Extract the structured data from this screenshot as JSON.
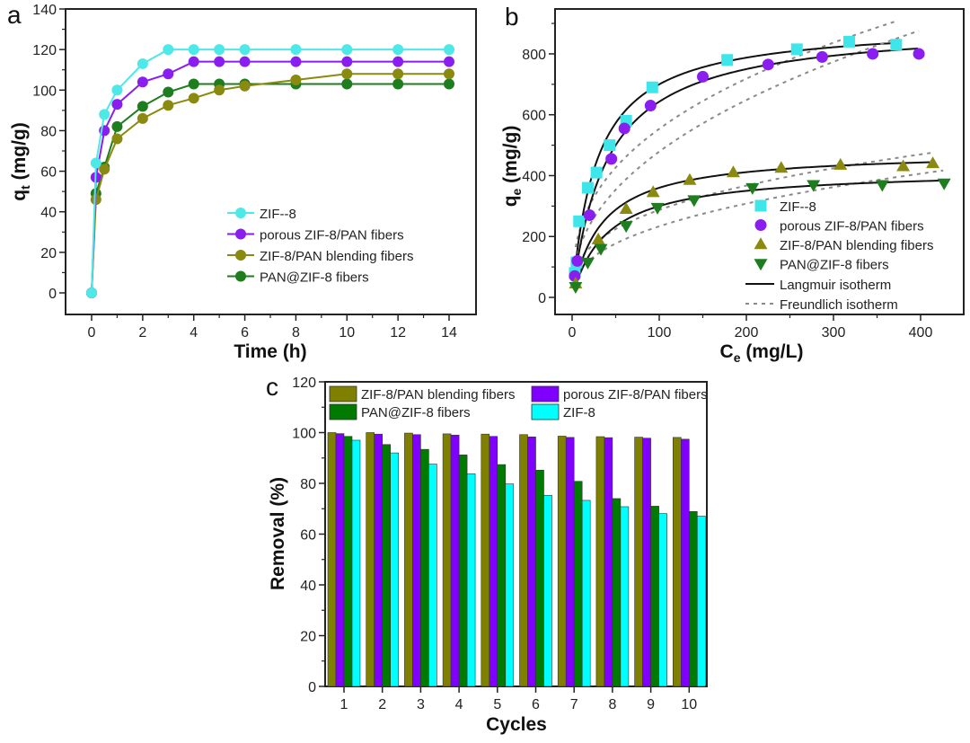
{
  "chart_data": [
    {
      "panel": "a",
      "type": "line",
      "xlabel": "Time (h)",
      "ylabel_main": "q",
      "ylabel_sub": "t",
      "ylabel_unit": " (mg/g)",
      "xlim": [
        -0.7,
        15
      ],
      "ylim": [
        -10,
        140
      ],
      "xticks": [
        "0",
        "2",
        "4",
        "6",
        "8",
        "10",
        "12",
        "14"
      ],
      "yticks": [
        "0",
        "20",
        "40",
        "60",
        "80",
        "100",
        "120",
        "140"
      ],
      "x": [
        0,
        0.17,
        0.5,
        1,
        2,
        3,
        4,
        5,
        6,
        8,
        10,
        12,
        14
      ],
      "legend_position": "center-right",
      "series": [
        {
          "name": "ZIF--8",
          "color": "#4de8e8",
          "values": [
            0,
            64,
            88,
            100,
            113,
            120,
            120,
            120,
            120,
            120,
            120,
            120,
            120
          ]
        },
        {
          "name": "porous ZIF-8/PAN fibers",
          "color": "#8a1ef0",
          "values": [
            0,
            57,
            80,
            93,
            104,
            108,
            114,
            114,
            114,
            114,
            114,
            114,
            114
          ]
        },
        {
          "name": "ZIF-8/PAN blending fibers",
          "color": "#8a8a10",
          "values": [
            0,
            46,
            61,
            76,
            86,
            92.5,
            96,
            100,
            102,
            105,
            108,
            108,
            108
          ]
        },
        {
          "name": "PAN@ZIF-8 fibers",
          "color": "#1e7d1e",
          "values": [
            0,
            49,
            62,
            82,
            92,
            99,
            103,
            103,
            103,
            103,
            103,
            103,
            103
          ]
        }
      ]
    },
    {
      "panel": "b",
      "type": "scatter",
      "xlabel_main": "C",
      "xlabel_sub": "e",
      "xlabel_unit": " (mg/L)",
      "ylabel_main": "q",
      "ylabel_sub": "e",
      "ylabel_unit": " (mg/g)",
      "xlim": [
        -20,
        450
      ],
      "ylim": [
        -56,
        947
      ],
      "xticks": [
        "0",
        "100",
        "200",
        "300",
        "400"
      ],
      "yticks": [
        "0",
        "200",
        "400",
        "600",
        "800"
      ],
      "legend_position": "bottom-right",
      "series": [
        {
          "name": "ZIF--8",
          "marker": "square",
          "color": "#3ee6ea",
          "points": [
            [
              3,
              80
            ],
            [
              5,
              115
            ],
            [
              8,
              250
            ],
            [
              18,
              360
            ],
            [
              28,
              410
            ],
            [
              43,
              500
            ],
            [
              62,
              580
            ],
            [
              92,
              690
            ],
            [
              178,
              780
            ],
            [
              258,
              815
            ],
            [
              318,
              840
            ],
            [
              372,
              830
            ]
          ],
          "langmuir": {
            "qm": 900,
            "K": 0.035,
            "xmax": 372
          },
          "freundlich": {
            "Kf": 98,
            "n_inv": 0.376,
            "xmax": 372
          }
        },
        {
          "name": "porous ZIF-8/PAN fibers",
          "marker": "circle",
          "color": "#8a1ef0",
          "points": [
            [
              3,
              70
            ],
            [
              6,
              120
            ],
            [
              20,
              270
            ],
            [
              45,
              455
            ],
            [
              60,
              555
            ],
            [
              90,
              630
            ],
            [
              150,
              725
            ],
            [
              225,
              765
            ],
            [
              287,
              790
            ],
            [
              345,
              800
            ],
            [
              398,
              800
            ]
          ],
          "langmuir": {
            "qm": 900,
            "K": 0.025,
            "xmax": 398
          },
          "freundlich": {
            "Kf": 64,
            "n_inv": 0.437,
            "xmax": 398
          }
        },
        {
          "name": "ZIF-8/PAN blending fibers",
          "marker": "triangle-up",
          "color": "#8a8a10",
          "points": [
            [
              4,
              45
            ],
            [
              30,
              190
            ],
            [
              62,
              290
            ],
            [
              93,
              345
            ],
            [
              135,
              385
            ],
            [
              185,
              410
            ],
            [
              240,
              425
            ],
            [
              308,
              435
            ],
            [
              380,
              430
            ],
            [
              414,
              440
            ]
          ],
          "langmuir": {
            "qm": 480,
            "K": 0.03,
            "xmax": 414
          },
          "freundlich": {
            "Kf": 56,
            "n_inv": 0.355,
            "xmax": 414
          }
        },
        {
          "name": "PAN@ZIF-8 fibers",
          "marker": "triangle-down",
          "color": "#1e7d1e",
          "points": [
            [
              4,
              35
            ],
            [
              18,
              115
            ],
            [
              33,
              160
            ],
            [
              62,
              235
            ],
            [
              98,
              295
            ],
            [
              140,
              320
            ],
            [
              207,
              360
            ],
            [
              277,
              370
            ],
            [
              356,
              370
            ],
            [
              427,
              375
            ]
          ],
          "langmuir": {
            "qm": 420,
            "K": 0.025,
            "xmax": 427
          },
          "freundlich": {
            "Kf": 37,
            "n_inv": 0.4,
            "xmax": 427
          }
        }
      ],
      "fit_legend": [
        "Langmuir isotherm",
        "Freundlich isotherm"
      ]
    },
    {
      "panel": "c",
      "type": "bar",
      "xlabel": "Cycles",
      "ylabel": "Removal (%)",
      "ylim": [
        0,
        120
      ],
      "yticks": [
        "0",
        "20",
        "40",
        "60",
        "80",
        "100",
        "120"
      ],
      "categories": [
        "1",
        "2",
        "3",
        "4",
        "5",
        "6",
        "7",
        "8",
        "9",
        "10"
      ],
      "legend_position": "top",
      "series": [
        {
          "name": "ZIF-8/PAN blending fibers",
          "color": "#808000",
          "values": [
            100,
            100,
            99.8,
            99.5,
            99.4,
            99.2,
            98.6,
            98.4,
            98.2,
            98.1
          ]
        },
        {
          "name": "porous ZIF-8/PAN fibers",
          "color": "#8000ff",
          "values": [
            99.6,
            99.4,
            99.2,
            99,
            98.5,
            98.3,
            98.1,
            98,
            97.8,
            97.4
          ]
        },
        {
          "name": "PAN@ZIF-8 fibers",
          "color": "#007a00",
          "values": [
            98.5,
            95.3,
            93.4,
            91.2,
            87.4,
            85.2,
            80.8,
            74,
            71,
            68.9
          ]
        },
        {
          "name": "ZIF-8",
          "color": "#00ffff",
          "values": [
            97,
            92,
            87.6,
            83.8,
            79.8,
            75.3,
            73.3,
            70.8,
            68.1,
            67.1
          ]
        }
      ]
    }
  ],
  "panel_labels": [
    "a",
    "b",
    "c"
  ]
}
